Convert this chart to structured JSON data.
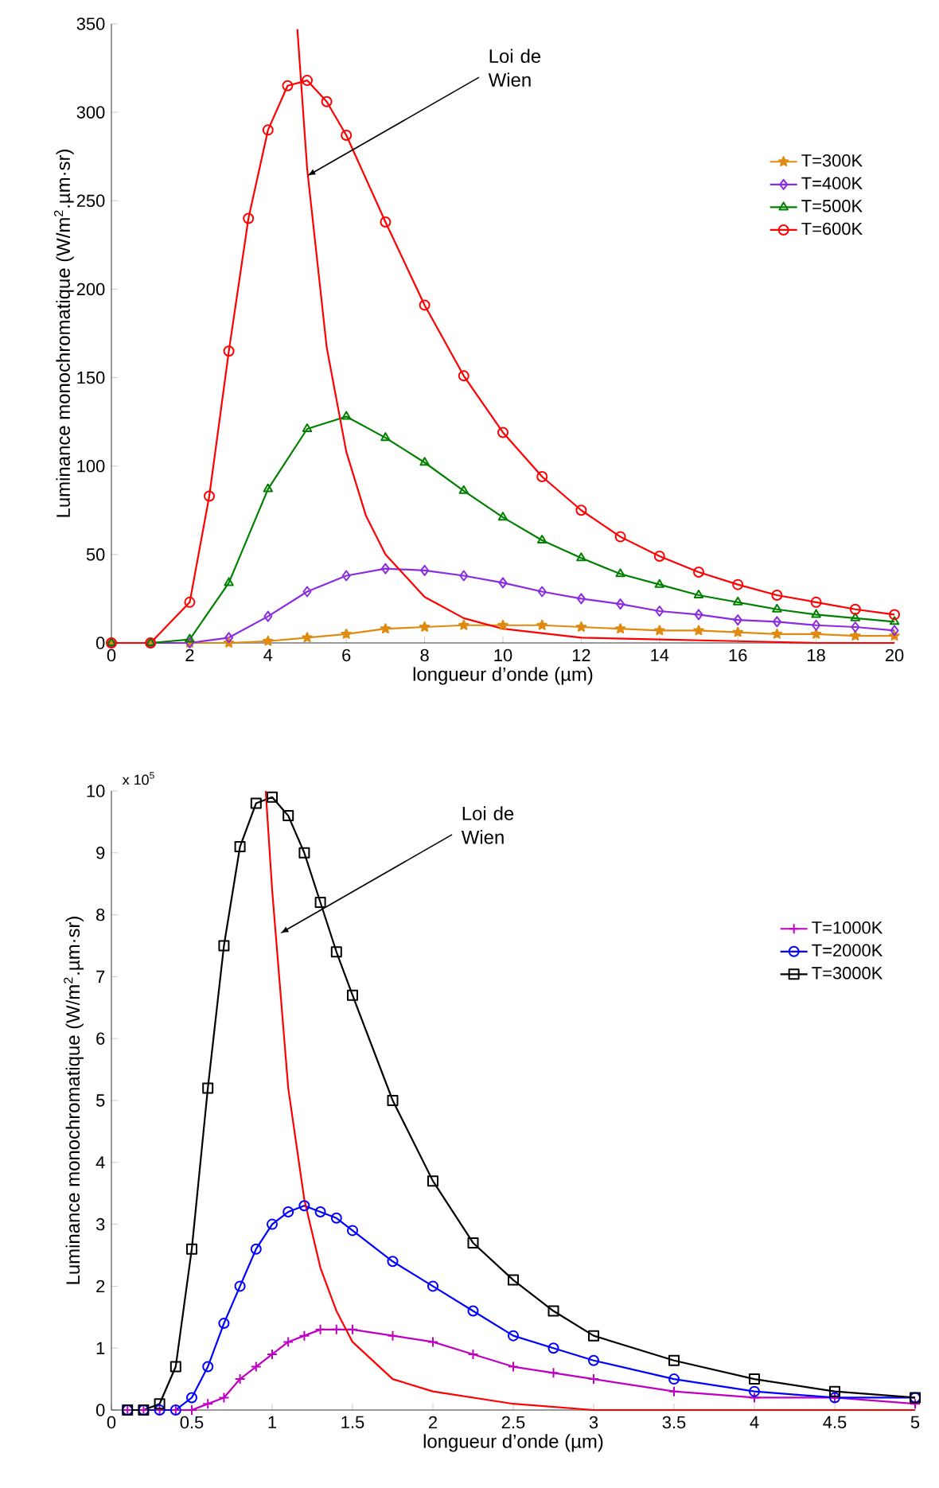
{
  "chart_data": [
    {
      "type": "line",
      "xlabel": "longueur d’onde (µm)",
      "ylabel": "Luminance monochromatique (W/m$^{2}$.µm·sr)",
      "xlim": [
        0,
        20
      ],
      "ylim": [
        0,
        350
      ],
      "xticks": [
        0,
        2,
        4,
        6,
        8,
        10,
        12,
        14,
        16,
        18,
        20
      ],
      "yticks": [
        0,
        50,
        100,
        150,
        200,
        250,
        300,
        350
      ],
      "legend": "top right",
      "annotations": [
        {
          "text": "Loi de Wien",
          "x": 5,
          "y": 264
        }
      ],
      "series": [
        {
          "name": "T=300K",
          "color": "#e08a10",
          "marker": "star",
          "x": [
            0,
            1,
            2,
            3,
            4,
            5,
            6,
            7,
            8,
            9,
            10,
            11,
            12,
            13,
            14,
            15,
            16,
            17,
            18,
            19,
            20
          ],
          "values": [
            0,
            0,
            0,
            0,
            1,
            3,
            5,
            8,
            9,
            10,
            10,
            10,
            9,
            8,
            7,
            7,
            6,
            5,
            5,
            4,
            4
          ]
        },
        {
          "name": "T=400K",
          "color": "#8a2be2",
          "marker": "diamond",
          "x": [
            0,
            1,
            2,
            3,
            4,
            5,
            6,
            7,
            8,
            9,
            10,
            11,
            12,
            13,
            14,
            15,
            16,
            17,
            18,
            19,
            20
          ],
          "values": [
            0,
            0,
            0,
            3,
            15,
            29,
            38,
            42,
            41,
            38,
            34,
            29,
            25,
            22,
            18,
            16,
            13,
            12,
            10,
            9,
            7
          ]
        },
        {
          "name": "T=500K",
          "color": "#008000",
          "marker": "triangle",
          "x": [
            0,
            1,
            2,
            3,
            4,
            5,
            6,
            7,
            8,
            9,
            10,
            11,
            12,
            13,
            14,
            15,
            16,
            17,
            18,
            19,
            20
          ],
          "values": [
            0,
            0,
            2,
            34,
            87,
            121,
            128,
            116,
            102,
            86,
            71,
            58,
            48,
            39,
            33,
            27,
            23,
            19,
            16,
            14,
            12
          ]
        },
        {
          "name": "T=600K",
          "color": "#ff0000",
          "marker": "circle",
          "x": [
            0,
            1,
            2,
            2.5,
            3,
            3.5,
            4,
            4.5,
            5,
            5.5,
            6,
            7,
            8,
            9,
            10,
            11,
            12,
            13,
            14,
            15,
            16,
            17,
            18,
            19,
            20
          ],
          "values": [
            0,
            0,
            23,
            83,
            165,
            240,
            290,
            315,
            318,
            306,
            287,
            238,
            191,
            151,
            119,
            94,
            75,
            60,
            49,
            40,
            33,
            27,
            23,
            19,
            16
          ]
        },
        {
          "color": "#ff0000",
          "marker": "none",
          "x": [
            4.75,
            5,
            5.5,
            6,
            6.5,
            7,
            8,
            9,
            10,
            12,
            14,
            16,
            18,
            20
          ],
          "values": [
            347,
            268,
            167,
            108,
            72,
            50,
            26,
            14,
            8,
            3,
            2,
            1,
            0,
            0
          ]
        }
      ]
    },
    {
      "type": "line",
      "xlabel": "longueur d’onde (µm)",
      "ylabel": "Luminance monochromatique (W/m$^{2}$.µm·sr)",
      "xlim": [
        0,
        5
      ],
      "ylim": [
        0,
        10
      ],
      "xticks": [
        0,
        0.5,
        1,
        1.5,
        2,
        2.5,
        3,
        3.5,
        4,
        4.5,
        5
      ],
      "yticks": [
        0,
        1,
        2,
        3,
        4,
        5,
        6,
        7,
        8,
        9,
        10
      ],
      "legend": "top right",
      "annotations": [
        "x 10$^{5}$",
        {
          "text": "Loi de Wien",
          "x": 1.05,
          "y": 7.7
        }
      ],
      "series": [
        {
          "name": "T=1000K",
          "color": "#c000c0",
          "marker": "cross",
          "x": [
            0.1,
            0.2,
            0.3,
            0.4,
            0.5,
            0.6,
            0.7,
            0.8,
            0.9,
            1.0,
            1.1,
            1.2,
            1.3,
            1.4,
            1.5,
            1.75,
            2,
            2.25,
            2.5,
            2.75,
            3,
            3.5,
            4,
            4.5,
            5
          ],
          "values": [
            0,
            0,
            0,
            0,
            0,
            0.1,
            0.2,
            0.5,
            0.7,
            0.9,
            1.1,
            1.2,
            1.3,
            1.3,
            1.3,
            1.2,
            1.1,
            0.9,
            0.7,
            0.6,
            0.5,
            0.3,
            0.2,
            0.2,
            0.1
          ]
        },
        {
          "name": "T=2000K",
          "color": "#0000ff",
          "marker": "circle",
          "x": [
            0.1,
            0.2,
            0.3,
            0.4,
            0.5,
            0.6,
            0.7,
            0.8,
            0.9,
            1.0,
            1.1,
            1.2,
            1.3,
            1.4,
            1.5,
            1.75,
            2,
            2.25,
            2.5,
            2.75,
            3,
            3.5,
            4,
            4.5,
            5
          ],
          "values": [
            0,
            0,
            0,
            0,
            0.2,
            0.7,
            1.4,
            2.0,
            2.6,
            3.0,
            3.2,
            3.3,
            3.2,
            3.1,
            2.9,
            2.4,
            2.0,
            1.6,
            1.2,
            1.0,
            0.8,
            0.5,
            0.3,
            0.2,
            0.2
          ]
        },
        {
          "name": "T=3000K",
          "color": "#000000",
          "marker": "square",
          "x": [
            0.1,
            0.2,
            0.3,
            0.4,
            0.5,
            0.6,
            0.7,
            0.8,
            0.9,
            1.0,
            1.1,
            1.2,
            1.3,
            1.4,
            1.5,
            1.75,
            2,
            2.25,
            2.5,
            2.75,
            3,
            3.5,
            4,
            4.5,
            5
          ],
          "values": [
            0,
            0,
            0.1,
            0.7,
            2.6,
            5.2,
            7.5,
            9.1,
            9.8,
            9.9,
            9.6,
            9.0,
            8.2,
            7.4,
            6.7,
            5.0,
            3.7,
            2.7,
            2.1,
            1.6,
            1.2,
            0.8,
            0.5,
            0.3,
            0.2
          ]
        },
        {
          "color": "#ff0000",
          "marker": "none",
          "x": [
            0.96,
            1.0,
            1.1,
            1.2,
            1.3,
            1.4,
            1.5,
            1.75,
            2,
            2.5,
            3,
            4,
            5
          ],
          "values": [
            10,
            8.4,
            5.2,
            3.4,
            2.3,
            1.6,
            1.1,
            0.5,
            0.3,
            0.1,
            0,
            0,
            0
          ]
        }
      ]
    }
  ]
}
